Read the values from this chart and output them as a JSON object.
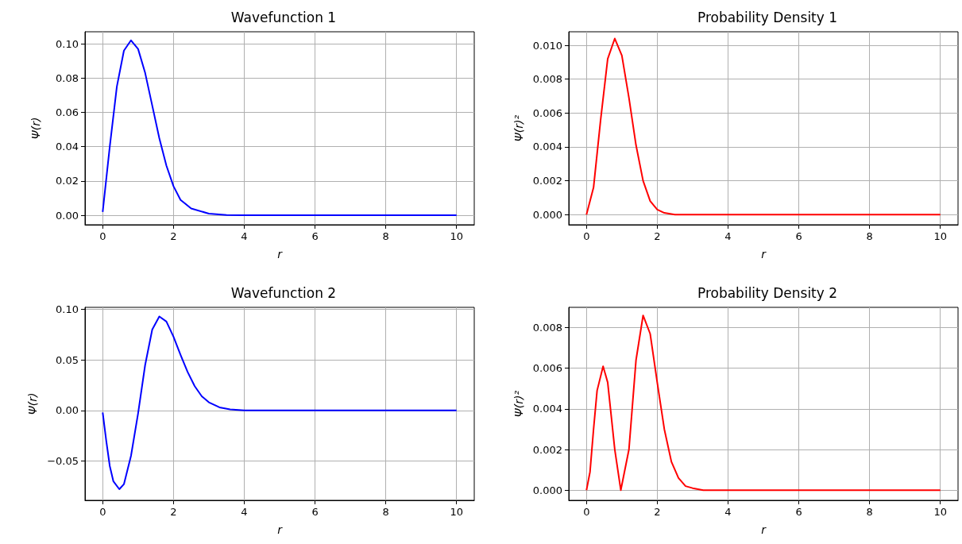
{
  "chart_data": [
    {
      "type": "line",
      "title": "Wavefunction 1",
      "xlabel": "r",
      "ylabel": "Ψ(r)",
      "grid": true,
      "xlim": [
        -0.5,
        10.5
      ],
      "xticks": [
        0,
        2,
        4,
        6,
        8,
        10
      ],
      "ylim": [
        -0.0055,
        0.107
      ],
      "yticks": [
        {
          "value": 0,
          "label": "0.00"
        },
        {
          "value": 0.02,
          "label": "0.02"
        },
        {
          "value": 0.04,
          "label": "0.04"
        },
        {
          "value": 0.06,
          "label": "0.06"
        },
        {
          "value": 0.08,
          "label": "0.08"
        },
        {
          "value": 0.1,
          "label": "0.10"
        }
      ],
      "series": [
        {
          "color": "#0000ff",
          "x": [
            0,
            0.2,
            0.4,
            0.6,
            0.8,
            1.0,
            1.2,
            1.4,
            1.6,
            1.8,
            2.0,
            2.2,
            2.5,
            3.0,
            3.5,
            4,
            5,
            6,
            7,
            8,
            9,
            10
          ],
          "values": [
            0.002,
            0.04,
            0.075,
            0.096,
            0.102,
            0.097,
            0.083,
            0.064,
            0.045,
            0.029,
            0.017,
            0.009,
            0.004,
            0.001,
            0.0002,
            0,
            0,
            0,
            0,
            0,
            0,
            0
          ]
        }
      ]
    },
    {
      "type": "line",
      "title": "Probability Density 1",
      "xlabel": "r",
      "ylabel": "Ψ(r)²",
      "grid": true,
      "xlim": [
        -0.5,
        10.5
      ],
      "xticks": [
        0,
        2,
        4,
        6,
        8,
        10
      ],
      "ylim": [
        -0.0006,
        0.0108
      ],
      "yticks": [
        {
          "value": 0,
          "label": "0.000"
        },
        {
          "value": 0.002,
          "label": "0.002"
        },
        {
          "value": 0.004,
          "label": "0.004"
        },
        {
          "value": 0.006,
          "label": "0.006"
        },
        {
          "value": 0.008,
          "label": "0.008"
        },
        {
          "value": 0.01,
          "label": "0.010"
        }
      ],
      "series": [
        {
          "color": "#ff0000",
          "x": [
            0,
            0.2,
            0.4,
            0.6,
            0.8,
            1.0,
            1.2,
            1.4,
            1.6,
            1.8,
            2.0,
            2.2,
            2.5,
            3.0,
            3.5,
            4,
            5,
            6,
            7,
            8,
            9,
            10
          ],
          "values": [
            0,
            0.0016,
            0.0056,
            0.0092,
            0.0104,
            0.0094,
            0.0069,
            0.0041,
            0.002,
            0.0008,
            0.0003,
            0.0001,
            0,
            0,
            0,
            0,
            0,
            0,
            0,
            0,
            0,
            0
          ]
        }
      ]
    },
    {
      "type": "line",
      "title": "Wavefunction 2",
      "xlabel": "r",
      "ylabel": "Ψ(r)",
      "grid": true,
      "xlim": [
        -0.5,
        10.5
      ],
      "xticks": [
        0,
        2,
        4,
        6,
        8,
        10
      ],
      "ylim": [
        -0.089,
        0.102
      ],
      "yticks": [
        {
          "value": -0.05,
          "label": "−0.05"
        },
        {
          "value": 0,
          "label": "0.00"
        },
        {
          "value": 0.05,
          "label": "0.05"
        },
        {
          "value": 0.1,
          "label": "0.10"
        }
      ],
      "series": [
        {
          "color": "#0000ff",
          "x": [
            0,
            0.1,
            0.2,
            0.3,
            0.47,
            0.6,
            0.8,
            1.0,
            1.2,
            1.4,
            1.6,
            1.8,
            2.0,
            2.2,
            2.4,
            2.6,
            2.8,
            3.0,
            3.3,
            3.6,
            4,
            5,
            6,
            7,
            8,
            9,
            10
          ],
          "values": [
            -0.002,
            -0.03,
            -0.055,
            -0.07,
            -0.078,
            -0.073,
            -0.045,
            -0.003,
            0.045,
            0.08,
            0.093,
            0.088,
            0.073,
            0.055,
            0.038,
            0.024,
            0.014,
            0.008,
            0.003,
            0.001,
            0,
            0,
            0,
            0,
            0,
            0,
            0
          ]
        }
      ]
    },
    {
      "type": "line",
      "title": "Probability Density 2",
      "xlabel": "r",
      "ylabel": "Ψ(r)²",
      "grid": true,
      "xlim": [
        -0.5,
        10.5
      ],
      "xticks": [
        0,
        2,
        4,
        6,
        8,
        10
      ],
      "ylim": [
        -0.0005,
        0.009
      ],
      "yticks": [
        {
          "value": 0,
          "label": "0.000"
        },
        {
          "value": 0.002,
          "label": "0.002"
        },
        {
          "value": 0.004,
          "label": "0.004"
        },
        {
          "value": 0.006,
          "label": "0.006"
        },
        {
          "value": 0.008,
          "label": "0.008"
        }
      ],
      "series": [
        {
          "color": "#ff0000",
          "x": [
            0,
            0.1,
            0.2,
            0.3,
            0.47,
            0.6,
            0.8,
            0.97,
            1.2,
            1.4,
            1.6,
            1.8,
            2.0,
            2.2,
            2.4,
            2.6,
            2.8,
            3.0,
            3.3,
            3.6,
            4,
            5,
            6,
            7,
            8,
            9,
            10
          ],
          "values": [
            0,
            0.0009,
            0.003,
            0.0049,
            0.0061,
            0.0053,
            0.002,
            0,
            0.002,
            0.0064,
            0.0086,
            0.0077,
            0.0053,
            0.003,
            0.0014,
            0.0006,
            0.0002,
            0.0001,
            0,
            0,
            0,
            0,
            0,
            0,
            0,
            0,
            0
          ]
        }
      ]
    }
  ]
}
